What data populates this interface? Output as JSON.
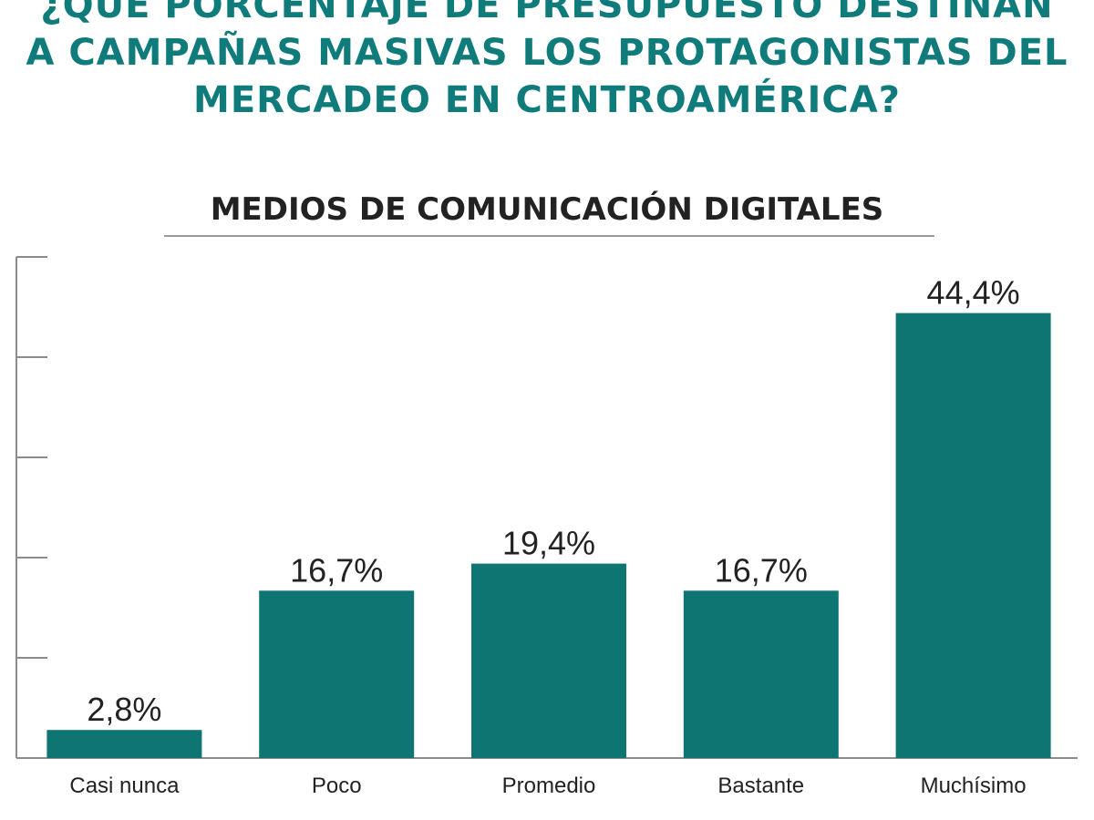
{
  "title_lines": [
    "¿QUÉ PORCENTAJE DE PRESUPUESTO DESTINAN",
    "A CAMPAÑAS MASIVAS LOS PROTAGONISTAS DEL",
    "MERCADEO EN CENTROAMÉRICA?"
  ],
  "colors": {
    "bar": "#0f7573",
    "title": "#0f7b7a",
    "axis": "#8c8c8c",
    "text": "#222222"
  },
  "chart_data": {
    "type": "bar",
    "title": "MEDIOS DE COMUNICACIÓN DIGITALES",
    "categories": [
      "Casi nunca",
      "Poco",
      "Promedio",
      "Bastante",
      "Muchísimo"
    ],
    "values": [
      2.8,
      16.7,
      19.4,
      16.7,
      44.4
    ],
    "value_labels": [
      "2,8%",
      "16,7%",
      "19,4%",
      "16,7%",
      "44,4%"
    ],
    "ylim": [
      0,
      50
    ],
    "grid": false,
    "xlabel": "",
    "ylabel": ""
  }
}
